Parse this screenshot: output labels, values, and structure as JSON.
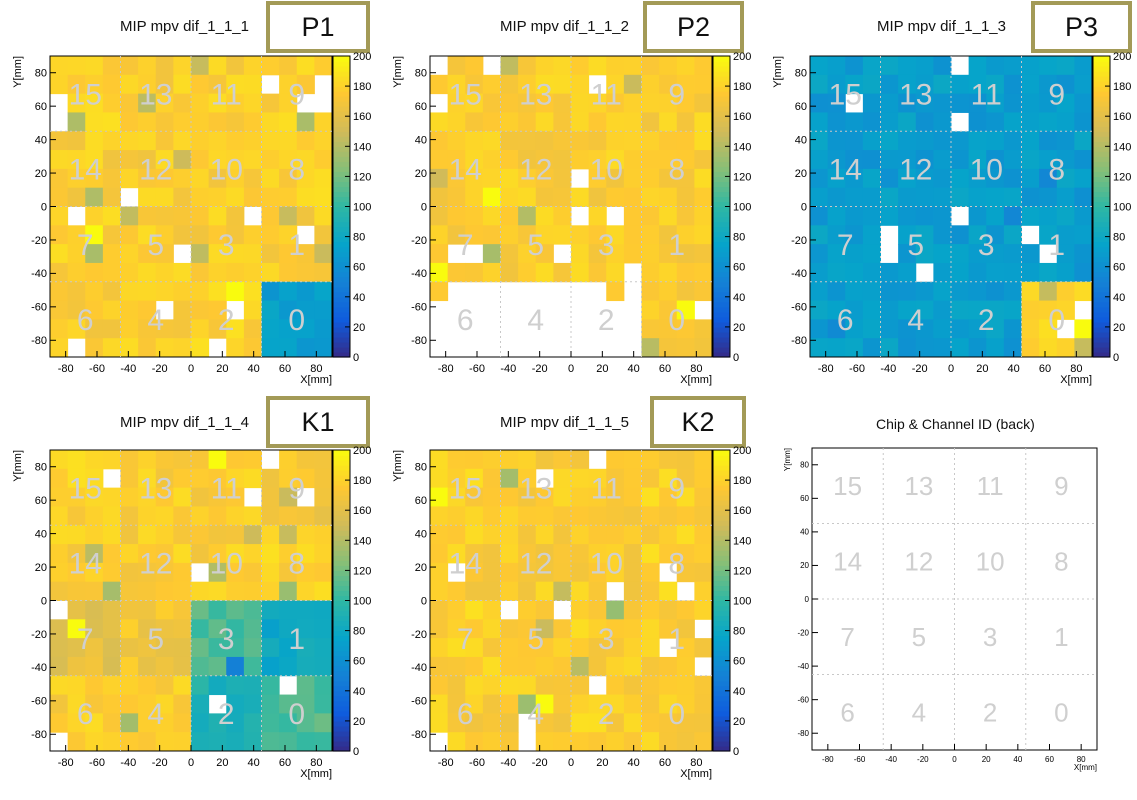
{
  "chart_data": [
    {
      "type": "heatmap",
      "title": "MIP mpv dif_1_1_1",
      "tag": "P1",
      "xlabel": "X[mm]",
      "ylabel": "Y[mm]",
      "xlim": [
        -90,
        90
      ],
      "ylim": [
        -90,
        90
      ],
      "zlim": [
        0,
        200
      ],
      "xticks": [
        -80,
        -60,
        -40,
        -20,
        0,
        20,
        40,
        60,
        80
      ],
      "yticks": [
        -80,
        -60,
        -40,
        -20,
        0,
        20,
        40,
        60,
        80
      ],
      "zticks": [
        0,
        20,
        40,
        60,
        80,
        100,
        120,
        140,
        160,
        180,
        200
      ],
      "grid": true,
      "chip_ids": [
        [
          15,
          13,
          11,
          9
        ],
        [
          14,
          12,
          10,
          8
        ],
        [
          7,
          5,
          3,
          1
        ],
        [
          6,
          4,
          2,
          0
        ]
      ],
      "chip_mpv": [
        [
          178,
          176,
          176,
          178
        ],
        [
          176,
          176,
          176,
          178
        ],
        [
          178,
          176,
          176,
          176
        ],
        [
          174,
          176,
          178,
          70
        ]
      ],
      "colorbar": true
    },
    {
      "type": "heatmap",
      "title": "MIP mpv dif_1_1_2",
      "tag": "P2",
      "xlabel": "X[mm]",
      "ylabel": "Y[mm]",
      "xlim": [
        -90,
        90
      ],
      "ylim": [
        -90,
        90
      ],
      "zlim": [
        0,
        200
      ],
      "xticks": [
        -80,
        -60,
        -40,
        -20,
        0,
        20,
        40,
        60,
        80
      ],
      "yticks": [
        -80,
        -60,
        -40,
        -20,
        0,
        20,
        40,
        60,
        80
      ],
      "zticks": [
        0,
        20,
        40,
        60,
        80,
        100,
        120,
        140,
        160,
        180,
        200
      ],
      "grid": true,
      "chip_ids": [
        [
          15,
          13,
          11,
          9
        ],
        [
          14,
          12,
          10,
          8
        ],
        [
          7,
          5,
          3,
          1
        ],
        [
          6,
          4,
          2,
          0
        ]
      ],
      "chip_mpv": [
        [
          176,
          176,
          176,
          176
        ],
        [
          176,
          176,
          176,
          176
        ],
        [
          176,
          176,
          176,
          176
        ],
        [
          null,
          null,
          null,
          174
        ]
      ],
      "colorbar": true
    },
    {
      "type": "heatmap",
      "title": "MIP mpv dif_1_1_3",
      "tag": "P3",
      "xlabel": "X[mm]",
      "ylabel": "Y[mm]",
      "xlim": [
        -90,
        90
      ],
      "ylim": [
        -90,
        90
      ],
      "zlim": [
        0,
        200
      ],
      "xticks": [
        -80,
        -60,
        -40,
        -20,
        0,
        20,
        40,
        60,
        80
      ],
      "yticks": [
        -80,
        -60,
        -40,
        -20,
        0,
        20,
        40,
        60,
        80
      ],
      "zticks": [
        0,
        20,
        40,
        60,
        80,
        100,
        120,
        140,
        160,
        180,
        200
      ],
      "grid": true,
      "chip_ids": [
        [
          15,
          13,
          11,
          9
        ],
        [
          14,
          12,
          10,
          8
        ],
        [
          7,
          5,
          3,
          1
        ],
        [
          6,
          4,
          2,
          0
        ]
      ],
      "chip_mpv": [
        [
          70,
          70,
          70,
          70
        ],
        [
          70,
          70,
          70,
          70
        ],
        [
          70,
          70,
          70,
          70
        ],
        [
          70,
          70,
          70,
          180
        ]
      ],
      "colorbar": true
    },
    {
      "type": "heatmap",
      "title": "MIP mpv dif_1_1_4",
      "tag": "K1",
      "xlabel": "X[mm]",
      "ylabel": "Y[mm]",
      "xlim": [
        -90,
        90
      ],
      "ylim": [
        -90,
        90
      ],
      "zlim": [
        0,
        200
      ],
      "xticks": [
        -80,
        -60,
        -40,
        -20,
        0,
        20,
        40,
        60,
        80
      ],
      "yticks": [
        -80,
        -60,
        -40,
        -20,
        0,
        20,
        40,
        60,
        80
      ],
      "zticks": [
        0,
        20,
        40,
        60,
        80,
        100,
        120,
        140,
        160,
        180,
        200
      ],
      "grid": true,
      "chip_ids": [
        [
          15,
          13,
          11,
          9
        ],
        [
          14,
          12,
          10,
          8
        ],
        [
          7,
          5,
          3,
          1
        ],
        [
          6,
          4,
          2,
          0
        ]
      ],
      "chip_mpv": [
        [
          178,
          176,
          176,
          170
        ],
        [
          176,
          176,
          176,
          178
        ],
        [
          160,
          170,
          110,
          80
        ],
        [
          176,
          176,
          90,
          110
        ]
      ],
      "colorbar": true
    },
    {
      "type": "heatmap",
      "title": "MIP mpv dif_1_1_5",
      "tag": "K2",
      "xlabel": "X[mm]",
      "ylabel": "Y[mm]",
      "xlim": [
        -90,
        90
      ],
      "ylim": [
        -90,
        90
      ],
      "zlim": [
        0,
        200
      ],
      "xticks": [
        -80,
        -60,
        -40,
        -20,
        0,
        20,
        40,
        60,
        80
      ],
      "yticks": [
        -80,
        -60,
        -40,
        -20,
        0,
        20,
        40,
        60,
        80
      ],
      "zticks": [
        0,
        20,
        40,
        60,
        80,
        100,
        120,
        140,
        160,
        180,
        200
      ],
      "grid": true,
      "chip_ids": [
        [
          15,
          13,
          11,
          9
        ],
        [
          14,
          12,
          10,
          8
        ],
        [
          7,
          5,
          3,
          1
        ],
        [
          6,
          4,
          2,
          0
        ]
      ],
      "chip_mpv": [
        [
          178,
          176,
          176,
          178
        ],
        [
          176,
          176,
          176,
          178
        ],
        [
          178,
          176,
          178,
          176
        ],
        [
          176,
          176,
          178,
          176
        ]
      ],
      "colorbar": true
    },
    {
      "type": "heatmap",
      "title": "Chip & Channel ID (back)",
      "tag": "",
      "xlabel": "X[mm]",
      "ylabel": "Y[mm]",
      "xlim": [
        -90,
        90
      ],
      "ylim": [
        -90,
        90
      ],
      "xticks": [
        -80,
        -60,
        -40,
        -20,
        0,
        20,
        40,
        60,
        80
      ],
      "yticks": [
        -80,
        -60,
        -40,
        -20,
        0,
        20,
        40,
        60,
        80
      ],
      "grid": true,
      "chip_ids": [
        [
          15,
          13,
          11,
          9
        ],
        [
          14,
          12,
          10,
          8
        ],
        [
          7,
          5,
          3,
          1
        ],
        [
          6,
          4,
          2,
          0
        ]
      ],
      "chip_mpv": null,
      "colorbar": false
    }
  ],
  "colors": {
    "tag_border": "#a39a57",
    "chip_label": "#cfcfcf",
    "grid": "#c8c8c8",
    "empty_cell": "#ffffff"
  },
  "palette": [
    "#352a87",
    "#0f5cdd",
    "#1481d6",
    "#06a4ca",
    "#2eb7a4",
    "#87bf77",
    "#d1bb59",
    "#fec832",
    "#f9fb0e"
  ]
}
